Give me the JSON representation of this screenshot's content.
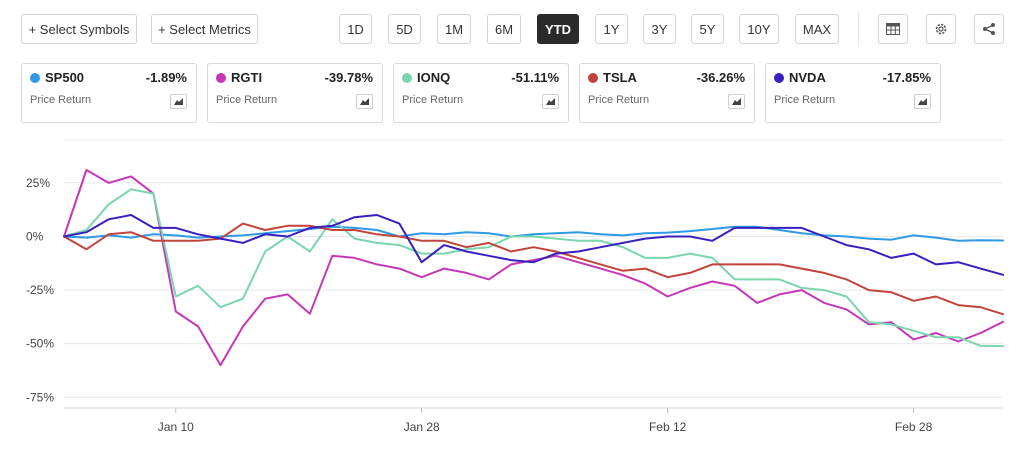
{
  "toolbar": {
    "select_symbols": "+ Select Symbols",
    "select_metrics": "+ Select Metrics",
    "ranges": [
      "1D",
      "5D",
      "1M",
      "6M",
      "YTD",
      "1Y",
      "3Y",
      "5Y",
      "10Y",
      "MAX"
    ],
    "active_range": "YTD",
    "icons": [
      "table-icon",
      "gear-icon",
      "share-icon"
    ]
  },
  "legend": [
    {
      "symbol": "SP500",
      "change": "-1.89%",
      "metric": "Price Return",
      "color": "#2e9ae6"
    },
    {
      "symbol": "RGTI",
      "change": "-39.78%",
      "metric": "Price Return",
      "color": "#c537b8"
    },
    {
      "symbol": "IONQ",
      "change": "-51.11%",
      "metric": "Price Return",
      "color": "#79d6ad"
    },
    {
      "symbol": "TSLA",
      "change": "-36.26%",
      "metric": "Price Return",
      "color": "#c2433b"
    },
    {
      "symbol": "NVDA",
      "change": "-17.85%",
      "metric": "Price Return",
      "color": "#3a1fbf"
    }
  ],
  "chart_data": {
    "type": "line",
    "x": [
      "2025-01-02",
      "2025-01-03",
      "2025-01-06",
      "2025-01-07",
      "2025-01-08",
      "2025-01-10",
      "2025-01-13",
      "2025-01-14",
      "2025-01-15",
      "2025-01-16",
      "2025-01-17",
      "2025-01-21",
      "2025-01-22",
      "2025-01-23",
      "2025-01-24",
      "2025-01-27",
      "2025-01-28",
      "2025-01-29",
      "2025-01-30",
      "2025-01-31",
      "2025-02-03",
      "2025-02-04",
      "2025-02-05",
      "2025-02-06",
      "2025-02-07",
      "2025-02-10",
      "2025-02-11",
      "2025-02-12",
      "2025-02-13",
      "2025-02-14",
      "2025-02-18",
      "2025-02-19",
      "2025-02-20",
      "2025-02-21",
      "2025-02-24",
      "2025-02-25",
      "2025-02-26",
      "2025-02-27",
      "2025-02-28",
      "2025-03-03",
      "2025-03-04",
      "2025-03-05",
      "2025-03-06"
    ],
    "x_ticks": [
      "Jan 10",
      "Jan 28",
      "Feb 12",
      "Feb 28"
    ],
    "x_tick_dates": [
      "2025-01-10",
      "2025-01-28",
      "2025-02-12",
      "2025-02-28"
    ],
    "y_ticks": [
      25,
      0,
      -25,
      -50,
      -75
    ],
    "y_tick_labels": [
      "25%",
      "0%",
      "-25%",
      "-50%",
      "-75%"
    ],
    "ylim": [
      -80,
      45
    ],
    "grid": true,
    "series": [
      {
        "name": "SP500",
        "values": [
          0,
          -0.5,
          0.5,
          -0.5,
          1,
          0.5,
          -0.5,
          0,
          0.5,
          1.5,
          2.5,
          3.5,
          4.5,
          4,
          3,
          0,
          1.5,
          1,
          2,
          1.5,
          0,
          1,
          1.5,
          2,
          1,
          0.5,
          1.5,
          1.8,
          2.5,
          3.5,
          4.5,
          4.5,
          3,
          1.5,
          0.5,
          0,
          -1,
          -1.5,
          0.5,
          -0.5,
          -2,
          -1.8,
          -1.89
        ]
      },
      {
        "name": "RGTI",
        "values": [
          0,
          31,
          25,
          28,
          20,
          -35,
          -42,
          -60,
          -42,
          -29,
          -27,
          -36,
          -9,
          -10,
          -13,
          -15,
          -19,
          -15,
          -17,
          -20,
          -13,
          -11,
          -9,
          -12,
          -15,
          -18,
          -22,
          -28,
          -24,
          -21,
          -23,
          -31,
          -27,
          -25,
          -31,
          -34,
          -41,
          -40,
          -48,
          -45,
          -49,
          -45,
          -39.78
        ]
      },
      {
        "name": "IONQ",
        "values": [
          0,
          3,
          15,
          22,
          20,
          -28,
          -23,
          -33,
          -29,
          -7,
          0,
          -7,
          8,
          -1,
          -3,
          -4,
          -8,
          -8,
          -6,
          -5,
          0,
          0,
          -1,
          -2,
          -2,
          -5,
          -10,
          -10,
          -8,
          -10,
          -20,
          -20,
          -20,
          -24,
          -25,
          -28,
          -40,
          -41,
          -44,
          -47,
          -47,
          -51,
          -51.11
        ]
      },
      {
        "name": "TSLA",
        "values": [
          0,
          -6,
          1,
          2,
          -2,
          -2,
          -2,
          -1,
          6,
          3,
          5,
          5,
          3,
          3,
          1,
          0,
          -2,
          -2,
          -5,
          -3,
          -7,
          -5,
          -7,
          -10,
          -13,
          -16,
          -15,
          -19,
          -17,
          -13,
          -13,
          -13,
          -13,
          -15,
          -17,
          -20,
          -25,
          -26,
          -30,
          -28,
          -32,
          -33,
          -36.26
        ]
      },
      {
        "name": "NVDA",
        "values": [
          0,
          2,
          8,
          10,
          4,
          4,
          1,
          -1,
          -3,
          1,
          0,
          4,
          5,
          9,
          10,
          6,
          -12,
          -4,
          -7,
          -9,
          -11,
          -12,
          -8,
          -7,
          -5,
          -3,
          -1,
          0,
          0,
          -2,
          4,
          4,
          4,
          4,
          0,
          -4,
          -6,
          -10,
          -8,
          -13,
          -12,
          -15,
          -17.85
        ]
      }
    ]
  }
}
